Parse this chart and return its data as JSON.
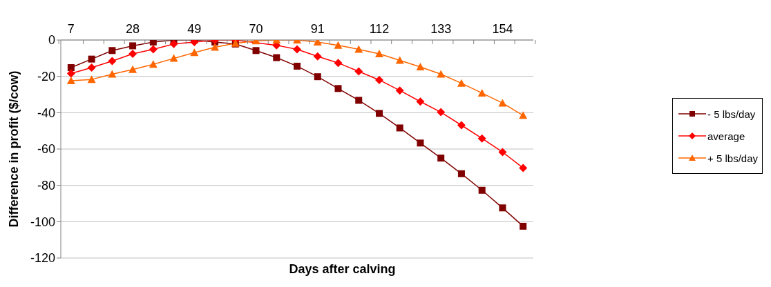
{
  "chart_data": {
    "type": "line",
    "xlabel": "Days after calving",
    "ylabel": "Difference in profit ($/cow)",
    "categories": [
      "7",
      null,
      null,
      "28",
      null,
      null,
      "49",
      null,
      null,
      "70",
      null,
      null,
      "91",
      null,
      null,
      "112",
      null,
      null,
      "133",
      null,
      null,
      "154",
      null
    ],
    "series": [
      {
        "name": "- 5 lbs/day",
        "color": "#800000",
        "marker": "square",
        "values": [
          -15.2,
          -10.5,
          -5.8,
          -3.2,
          -1.1,
          0,
          0,
          -1.1,
          -2.2,
          -5.8,
          -9.7,
          -14.4,
          -20.2,
          -26.7,
          -33.2,
          -40.4,
          -48.4,
          -56.7,
          -65,
          -73.6,
          -82.7,
          -92.4,
          -102.5
        ]
      },
      {
        "name": "average",
        "color": "#ff0000",
        "marker": "diamond",
        "values": [
          -18.4,
          -15.2,
          -11.6,
          -7.6,
          -5.1,
          -2.2,
          -1.1,
          0,
          0,
          null,
          -2.9,
          -5.1,
          -9,
          -12.6,
          -17.3,
          -22,
          -27.8,
          -33.9,
          -39.7,
          -46.9,
          -54.2,
          -61.7,
          -70.4
        ]
      },
      {
        "name": "+ 5 lbs/day",
        "color": "#ff6600",
        "marker": "triangle",
        "values": [
          -22.4,
          -21.7,
          -18.8,
          -16.2,
          -13.4,
          -10.1,
          -6.9,
          -4,
          -1.8,
          -0.5,
          0,
          0,
          -1.1,
          -2.9,
          -5.1,
          -7.6,
          -11.2,
          -14.8,
          -18.8,
          -23.8,
          -29.2,
          -34.7,
          -41.5
        ]
      }
    ],
    "ylim": [
      -120,
      0
    ],
    "yticks": [
      -120,
      -100,
      -80,
      -60,
      -40,
      -20,
      0
    ],
    "grid": "y",
    "legend": "right",
    "line_style": "solid"
  }
}
